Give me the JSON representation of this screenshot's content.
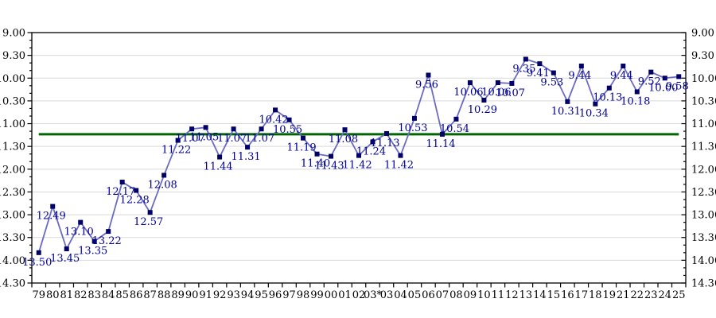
{
  "chart_data": {
    "type": "line",
    "title": "",
    "xlabel": "",
    "ylabel": "",
    "x_labels": [
      "79",
      "80",
      "81",
      "82",
      "83",
      "84",
      "85",
      "86",
      "87",
      "88",
      "89",
      "90",
      "91",
      "92",
      "93",
      "94",
      "95",
      "96",
      "97",
      "98",
      "99",
      "00",
      "01",
      "02",
      "03*",
      "03",
      "04",
      "05",
      "06",
      "07",
      "08",
      "09",
      "10",
      "11",
      "12",
      "13",
      "14",
      "15",
      "16",
      "17",
      "18",
      "19",
      "21",
      "22",
      "23",
      "24",
      "25"
    ],
    "series": [
      {
        "name": "yearly-result",
        "point_labels": [
          "13.50",
          "12.49",
          "13.45",
          "13.10",
          "13.35",
          "13.22",
          "12.17",
          "12.28",
          "12.57",
          "12.08",
          "11.22",
          "11.07",
          "11.05",
          "11.44",
          "11.07",
          "11.31",
          "11.07",
          "10.42",
          "10.55",
          "11.19",
          "11.40",
          "11.43",
          "11.08",
          "11.42",
          "11.24",
          "11.13",
          "11.42",
          "10.53",
          "9.56",
          "11.14",
          "10.54",
          "10.06",
          "10.29",
          "10.06",
          "10.07",
          "9.35",
          "9.41",
          "9.53",
          "10.31",
          "9.44",
          "10.34",
          "10.13",
          "9.44",
          "10.18",
          "9.52",
          "10.00",
          "9.58"
        ],
        "values_seconds": [
          830,
          769,
          825,
          790,
          815,
          802,
          737,
          748,
          777,
          728,
          682,
          667,
          665,
          704,
          667,
          691,
          667,
          642,
          655,
          679,
          700,
          703,
          668,
          702,
          684,
          673,
          702,
          653,
          596,
          674,
          654,
          606,
          629,
          606,
          607,
          575,
          581,
          593,
          631,
          584,
          634,
          613,
          584,
          618,
          592,
          600,
          598
        ]
      }
    ],
    "reference_line": {
      "label": "11.14",
      "value_seconds": 674,
      "color": "#006600"
    },
    "y_axis": {
      "inverted": true,
      "tick_labels": [
        "9.00",
        "9.30",
        "10.00",
        "10.30",
        "11.00",
        "11.30",
        "12.00",
        "12.30",
        "13.00",
        "13.30",
        "14.00",
        "14.30"
      ],
      "tick_seconds": [
        540,
        570,
        600,
        630,
        660,
        690,
        720,
        750,
        780,
        810,
        840,
        870
      ],
      "minor_tick_step_seconds": 10,
      "range_seconds": [
        540,
        870
      ],
      "shown_on_left": true,
      "shown_on_right": true
    },
    "grid": "horizontal-major",
    "legend": "none",
    "style": {
      "line_color": "#6b6bc4",
      "marker_color": "#000066",
      "point_label_color": "#000099",
      "axis_color": "#000000",
      "gridline_color": "#d9d9d9",
      "reference_line_color": "#006600",
      "background_color": "#ffffff"
    }
  }
}
